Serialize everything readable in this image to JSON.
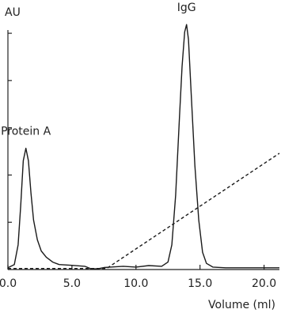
{
  "chart_data": {
    "type": "line",
    "ylabel": "AU",
    "xlabel": "Volume (ml)",
    "xlim": [
      0,
      21.2
    ],
    "ylim": [
      0,
      1
    ],
    "x_ticks": [
      0,
      5,
      10,
      15,
      20
    ],
    "x_tick_labels": [
      "0.0",
      "5.0",
      "10.0",
      "15.0",
      "20.0"
    ],
    "y_ticks": [
      0,
      0.191,
      0.382,
      0.573,
      0.764,
      0.955
    ],
    "grid": false,
    "annotations": [
      {
        "text": "Protein A",
        "x": 1.4,
        "y": 0.5
      },
      {
        "text": "IgG",
        "x": 13.95,
        "y": 1.0
      }
    ],
    "series": [
      {
        "style": "solid",
        "x": [
          0,
          0.5,
          0.8,
          1.0,
          1.2,
          1.4,
          1.6,
          1.8,
          2.0,
          2.3,
          2.6,
          3.0,
          3.5,
          4.0,
          5.0,
          6.0,
          6.5,
          7.0,
          7.5,
          8.0,
          9.0,
          10.0,
          11.0,
          12.0,
          12.5,
          12.8,
          13.1,
          13.4,
          13.6,
          13.8,
          13.95,
          14.1,
          14.3,
          14.6,
          14.9,
          15.2,
          15.5,
          16.0,
          17.0,
          18.0,
          19.0,
          20.0,
          21.2
        ],
        "y": [
          0.007,
          0.02,
          0.1,
          0.26,
          0.44,
          0.49,
          0.44,
          0.31,
          0.2,
          0.12,
          0.075,
          0.05,
          0.03,
          0.02,
          0.017,
          0.013,
          0.003,
          0.003,
          0.008,
          0.01,
          0.013,
          0.01,
          0.016,
          0.013,
          0.03,
          0.1,
          0.3,
          0.62,
          0.82,
          0.96,
          0.99,
          0.93,
          0.72,
          0.42,
          0.2,
          0.07,
          0.025,
          0.01,
          0.007,
          0.007,
          0.007,
          0.007,
          0.007
        ]
      },
      {
        "style": "dashed",
        "x": [
          0,
          7.7,
          21.2
        ],
        "y": [
          0.004,
          0.004,
          0.47
        ]
      }
    ]
  }
}
